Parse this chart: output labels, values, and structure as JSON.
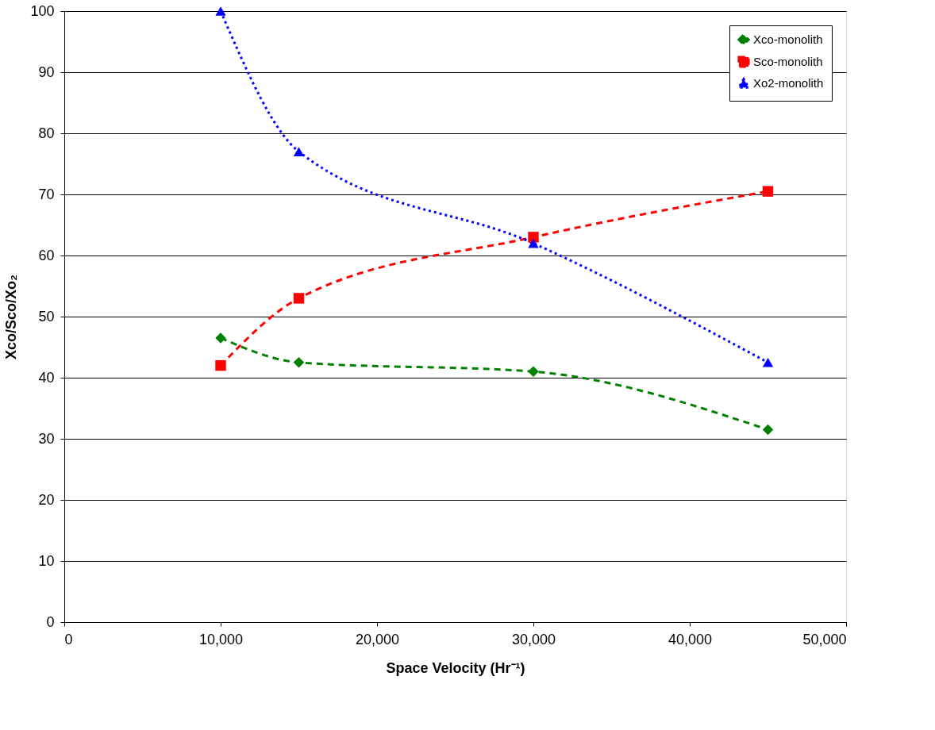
{
  "chart_data": {
    "type": "line",
    "xlabel": "Space Velocity (Hr⁻¹)",
    "ylabel": "Xco/Sco/Xo₂",
    "x": [
      10000,
      15000,
      30000,
      45000
    ],
    "series": [
      {
        "name": "Xco-monolith",
        "color": "#008000",
        "values": [
          46.5,
          42.5,
          41,
          31.5
        ],
        "marker": "diamond",
        "line_style": "dashed"
      },
      {
        "name": "Sco-monolith",
        "color": "#ff0000",
        "values": [
          42,
          53,
          63,
          70.5
        ],
        "marker": "square",
        "line_style": "dashed"
      },
      {
        "name": "Xo2-monolith",
        "color": "#0000ff",
        "values": [
          100,
          77,
          62,
          42.5
        ],
        "marker": "triangle",
        "line_style": "dotted"
      }
    ],
    "xlim": [
      0,
      50000
    ],
    "xticks": [
      0,
      {
        "value": 10000,
        "label": "10,000"
      },
      {
        "value": 20000,
        "label": "20,000"
      },
      {
        "value": 30000,
        "label": "30,000"
      },
      {
        "value": 40000,
        "label": "40,000"
      },
      {
        "value": 50000,
        "label": "50,000"
      }
    ],
    "ylim": [
      0,
      100
    ],
    "yticks": [
      0,
      10,
      20,
      30,
      40,
      50,
      60,
      70,
      80,
      90,
      100
    ],
    "grid": "y",
    "legend": "top right"
  }
}
